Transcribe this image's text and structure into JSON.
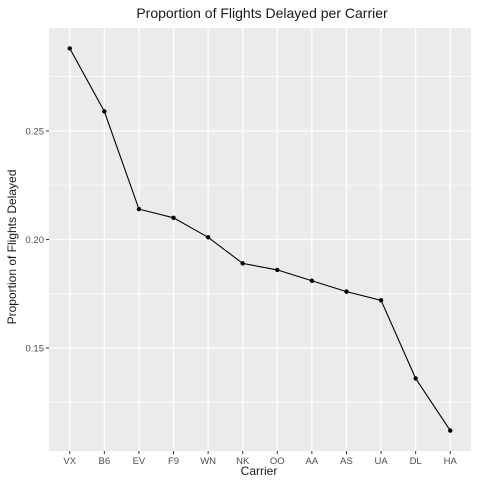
{
  "chart_data": {
    "type": "line",
    "title": "Proportion of Flights Delayed per Carrier",
    "xlabel": "Carrier",
    "ylabel": "Proportion of Flights Delayed",
    "categories": [
      "VX",
      "B6",
      "EV",
      "F9",
      "WN",
      "NK",
      "OO",
      "AA",
      "AS",
      "UA",
      "DL",
      "HA"
    ],
    "values": [
      0.288,
      0.259,
      0.214,
      0.21,
      0.201,
      0.189,
      0.186,
      0.181,
      0.176,
      0.172,
      0.136,
      0.112
    ],
    "ylim": [
      0.1026,
      0.2974
    ],
    "yticks": [
      0.15,
      0.2,
      0.25
    ],
    "ytick_labels": [
      "0.15",
      "0.20",
      "0.25"
    ],
    "grid": true,
    "panel_color": "#ebebeb",
    "grid_color": "#ffffff",
    "line_color": "#000000",
    "point_color": "#000000"
  }
}
